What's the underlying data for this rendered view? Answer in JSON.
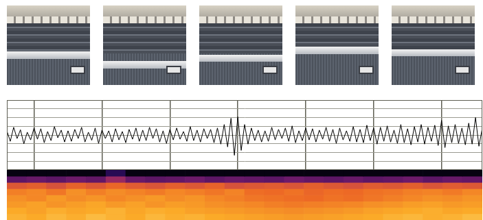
{
  "photos": {
    "count": 5
  },
  "chart_data": [
    {
      "type": "line",
      "x": [
        0,
        0.05,
        0.1,
        0.15,
        0.2,
        0.25,
        0.3,
        0.35,
        0.4,
        0.45,
        0.5,
        0.55,
        0.6,
        0.65,
        0.7,
        0.75,
        0.8,
        0.85,
        0.9,
        0.95,
        1,
        1.05,
        1.1,
        1.15,
        1.2,
        1.25,
        1.3,
        1.35,
        1.4,
        1.45,
        1.5,
        1.55,
        1.6,
        1.65,
        1.7,
        1.75,
        1.8,
        1.85,
        1.9,
        1.95,
        2,
        2.05,
        2.1,
        2.15,
        2.2,
        2.25,
        2.3,
        2.35,
        2.4,
        2.45,
        2.5,
        2.55,
        2.6,
        2.65,
        2.7,
        2.75,
        2.8,
        2.85,
        2.9,
        2.95,
        3,
        3.05,
        3.1,
        3.15,
        3.2,
        3.25,
        3.3,
        3.35,
        3.4,
        3.45,
        3.5,
        3.55,
        3.6,
        3.65,
        3.7,
        3.75,
        3.8,
        3.85,
        3.9,
        3.95,
        4,
        4.05,
        4.1,
        4.15,
        4.2,
        4.25,
        4.3,
        4.35,
        4.4,
        4.45,
        4.5,
        4.55,
        4.6,
        4.65,
        4.7,
        4.75,
        4.8,
        4.85,
        4.9,
        4.95,
        5,
        5.05,
        5.1,
        5.15,
        5.2,
        5.25,
        5.3,
        5.35,
        5.4,
        5.45,
        5.5,
        5.55,
        5.6,
        5.65,
        5.7,
        5.75,
        5.8,
        5.85,
        5.9,
        5.95,
        6,
        6.05,
        6.1,
        6.15,
        6.2,
        6.25,
        6.3,
        6.35,
        6.4,
        6.45,
        6.5,
        6.55,
        6.6,
        6.65,
        6.7,
        6.75,
        6.8,
        6.85,
        6.9,
        6.95,
        7
      ],
      "values": [
        0.12,
        -0.18,
        0.22,
        -0.1,
        0.15,
        -0.25,
        0.08,
        -0.14,
        0.2,
        -0.12,
        0.18,
        -0.22,
        0.1,
        -0.16,
        0.24,
        -0.08,
        0.14,
        -0.2,
        0.12,
        -0.18,
        0.16,
        -0.1,
        0.22,
        -0.2,
        0.08,
        -0.15,
        0.2,
        -0.24,
        0.14,
        -0.1,
        0.12,
        -0.2,
        0.18,
        -0.14,
        0.1,
        -0.22,
        0.16,
        -0.12,
        0.2,
        -0.18,
        0.14,
        -0.16,
        0.22,
        -0.1,
        0.18,
        -0.2,
        0.12,
        -0.24,
        0.16,
        -0.14,
        0.2,
        -0.12,
        0.1,
        -0.18,
        0.24,
        -0.16,
        0.14,
        -0.2,
        0.18,
        -0.1,
        0.16,
        -0.22,
        0.2,
        -0.26,
        0.3,
        -0.34,
        0.48,
        -0.58,
        0.52,
        -0.44,
        0.3,
        -0.26,
        0.2,
        -0.16,
        0.14,
        -0.2,
        0.12,
        -0.18,
        0.22,
        -0.14,
        0.16,
        -0.1,
        0.2,
        -0.18,
        0.26,
        -0.22,
        0.12,
        -0.16,
        0.2,
        -0.14,
        0.18,
        -0.2,
        0.14,
        -0.12,
        0.22,
        -0.18,
        0.16,
        -0.24,
        0.2,
        -0.14,
        0.12,
        -0.18,
        0.24,
        -0.2,
        0.16,
        -0.22,
        0.28,
        -0.16,
        0.2,
        -0.26,
        0.22,
        -0.18,
        0.26,
        -0.2,
        0.14,
        -0.24,
        0.3,
        -0.22,
        0.18,
        -0.28,
        0.24,
        -0.2,
        0.3,
        -0.26,
        0.22,
        -0.18,
        0.28,
        -0.3,
        0.42,
        -0.36,
        0.26,
        -0.22,
        0.3,
        -0.24,
        0.2,
        -0.28,
        0.34,
        -0.26,
        0.5,
        -0.32,
        0.2
      ],
      "color": "#000000",
      "xlim": [
        0,
        7
      ],
      "xticks": [
        0.4,
        1.4,
        2.4,
        3.4,
        4.4,
        5.4,
        6.4
      ],
      "ylim": [
        -1,
        1
      ],
      "yticks": [
        -1,
        -0.75,
        -0.5,
        -0.25,
        0,
        0.25,
        0.5,
        0.75,
        1
      ],
      "grid": true,
      "tick_labels": false
    },
    {
      "type": "heatmap",
      "cells": [
        [
          0.03,
          0.03,
          0.03,
          0.03,
          0.03,
          0.2,
          0.03,
          0.03,
          0.03,
          0.03,
          0.03,
          0.03,
          0.03,
          0.03,
          0.03,
          0.03,
          0.03,
          0.03,
          0.03,
          0.03,
          0.03,
          0.03,
          0.03,
          0.03
        ],
        [
          0.3,
          0.32,
          0.3,
          0.33,
          0.31,
          0.42,
          0.32,
          0.3,
          0.31,
          0.33,
          0.3,
          0.32,
          0.31,
          0.3,
          0.33,
          0.31,
          0.3,
          0.32,
          0.3,
          0.31,
          0.33,
          0.3,
          0.32,
          0.31
        ],
        [
          0.6,
          0.62,
          0.58,
          0.63,
          0.6,
          0.64,
          0.61,
          0.59,
          0.62,
          0.6,
          0.63,
          0.58,
          0.6,
          0.61,
          0.59,
          0.62,
          0.6,
          0.58,
          0.61,
          0.6,
          0.62,
          0.59,
          0.61,
          0.6
        ],
        [
          0.7,
          0.72,
          0.68,
          0.74,
          0.7,
          0.73,
          0.71,
          0.69,
          0.72,
          0.7,
          0.68,
          0.71,
          0.66,
          0.65,
          0.67,
          0.64,
          0.66,
          0.65,
          0.67,
          0.68,
          0.7,
          0.71,
          0.69,
          0.72
        ],
        [
          0.74,
          0.72,
          0.76,
          0.73,
          0.75,
          0.72,
          0.74,
          0.76,
          0.73,
          0.75,
          0.72,
          0.7,
          0.68,
          0.67,
          0.66,
          0.65,
          0.67,
          0.66,
          0.68,
          0.7,
          0.72,
          0.74,
          0.73,
          0.75
        ],
        [
          0.76,
          0.78,
          0.75,
          0.77,
          0.79,
          0.76,
          0.78,
          0.75,
          0.77,
          0.76,
          0.74,
          0.73,
          0.72,
          0.7,
          0.69,
          0.7,
          0.71,
          0.72,
          0.74,
          0.75,
          0.77,
          0.78,
          0.76,
          0.77
        ],
        [
          0.8,
          0.78,
          0.81,
          0.79,
          0.8,
          0.82,
          0.79,
          0.81,
          0.8,
          0.78,
          0.77,
          0.76,
          0.75,
          0.74,
          0.73,
          0.74,
          0.75,
          0.76,
          0.78,
          0.79,
          0.8,
          0.81,
          0.79,
          0.8
        ],
        [
          0.82,
          0.8,
          0.83,
          0.81,
          0.84,
          0.82,
          0.8,
          0.83,
          0.81,
          0.82,
          0.8,
          0.79,
          0.78,
          0.77,
          0.76,
          0.77,
          0.78,
          0.79,
          0.8,
          0.82,
          0.83,
          0.81,
          0.82,
          0.84
        ]
      ],
      "tick_labels": false
    }
  ]
}
